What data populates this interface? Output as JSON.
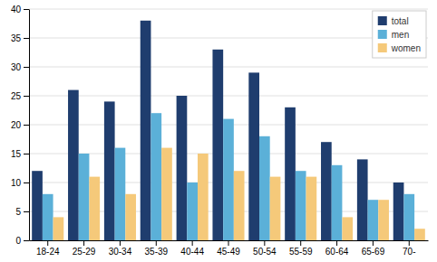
{
  "chart_data": {
    "type": "bar",
    "categories": [
      "18-24",
      "25-29",
      "30-34",
      "35-39",
      "40-44",
      "45-49",
      "50-54",
      "55-59",
      "60-64",
      "65-69",
      "70-"
    ],
    "series": [
      {
        "name": "total",
        "color": "#1F3D6E",
        "values": [
          12,
          26,
          24,
          38,
          25,
          33,
          29,
          23,
          17,
          14,
          10
        ]
      },
      {
        "name": "men",
        "color": "#5BB0D8",
        "values": [
          8,
          15,
          16,
          22,
          10,
          21,
          18,
          12,
          13,
          7,
          8
        ]
      },
      {
        "name": "women",
        "color": "#F5C97A",
        "values": [
          4,
          11,
          8,
          16,
          15,
          12,
          11,
          11,
          4,
          7,
          2
        ]
      }
    ],
    "ylim": [
      0,
      40
    ],
    "yticks": [
      0,
      5,
      10,
      15,
      20,
      25,
      30,
      35,
      40
    ],
    "grid": true,
    "legend": "upper right"
  }
}
